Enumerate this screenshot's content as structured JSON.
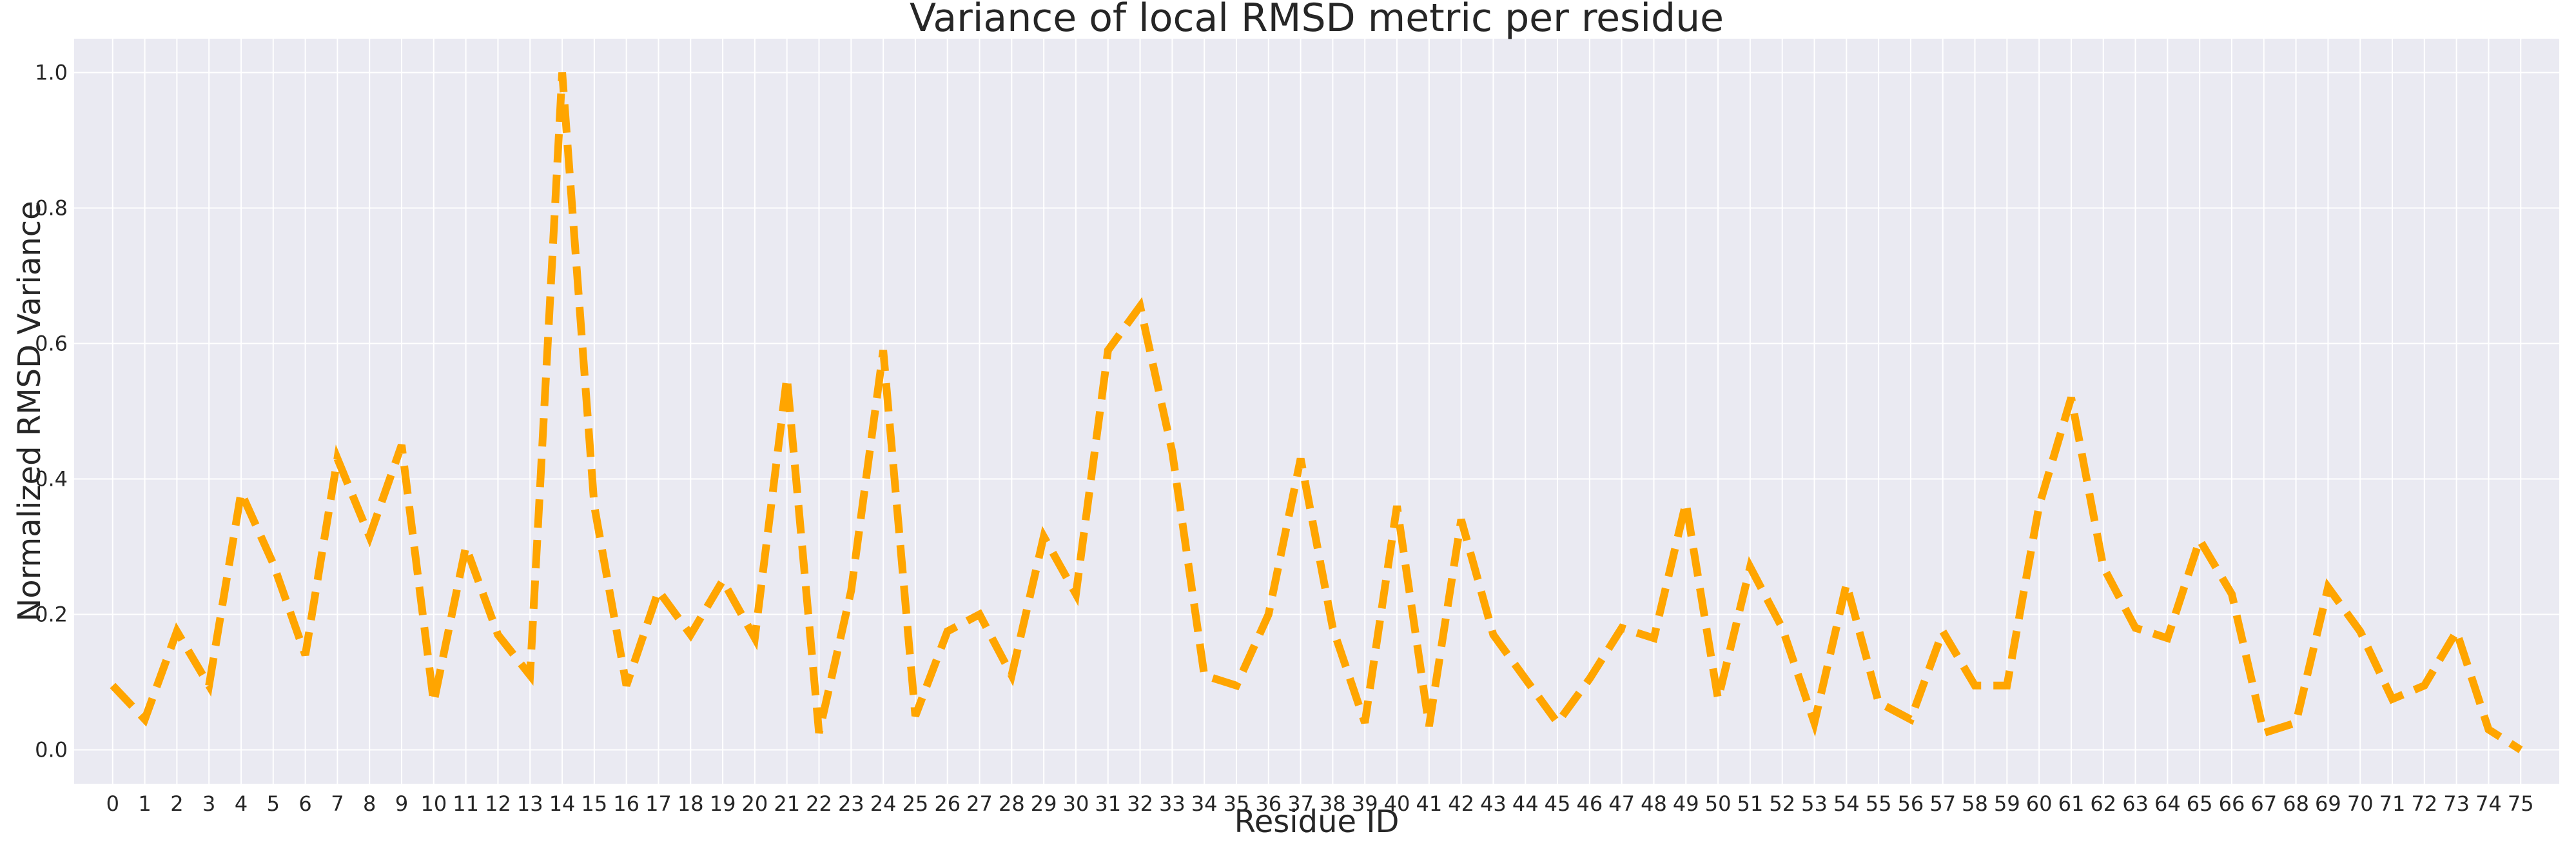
{
  "chart_data": {
    "type": "line",
    "title": "Variance of local RMSD metric per residue",
    "xlabel": "Residue ID",
    "ylabel": "Normalized RMSD Variance",
    "x": [
      0,
      1,
      2,
      3,
      4,
      5,
      6,
      7,
      8,
      9,
      10,
      11,
      12,
      13,
      14,
      15,
      16,
      17,
      18,
      19,
      20,
      21,
      22,
      23,
      24,
      25,
      26,
      27,
      28,
      29,
      30,
      31,
      32,
      33,
      34,
      35,
      36,
      37,
      38,
      39,
      40,
      41,
      42,
      43,
      44,
      45,
      46,
      47,
      48,
      49,
      50,
      51,
      52,
      53,
      54,
      55,
      56,
      57,
      58,
      59,
      60,
      61,
      62,
      63,
      64,
      65,
      66,
      67,
      68,
      69,
      70,
      71,
      72,
      73,
      74,
      75
    ],
    "xticks": [
      "0",
      "1",
      "2",
      "3",
      "4",
      "5",
      "6",
      "7",
      "8",
      "9",
      "10",
      "11",
      "12",
      "13",
      "14",
      "15",
      "16",
      "17",
      "18",
      "19",
      "20",
      "21",
      "22",
      "23",
      "24",
      "25",
      "26",
      "27",
      "28",
      "29",
      "30",
      "31",
      "32",
      "33",
      "34",
      "35",
      "36",
      "37",
      "38",
      "39",
      "40",
      "41",
      "42",
      "43",
      "44",
      "45",
      "46",
      "47",
      "48",
      "49",
      "50",
      "51",
      "52",
      "53",
      "54",
      "55",
      "56",
      "57",
      "58",
      "59",
      "60",
      "61",
      "62",
      "63",
      "64",
      "65",
      "66",
      "67",
      "68",
      "69",
      "70",
      "71",
      "72",
      "73",
      "74",
      "75"
    ],
    "yticks": [
      "0.0",
      "0.2",
      "0.4",
      "0.6",
      "0.8",
      "1.0"
    ],
    "ytick_values": [
      0.0,
      0.2,
      0.4,
      0.6,
      0.8,
      1.0
    ],
    "ylim": [
      -0.05,
      1.05
    ],
    "xlim": [
      -1.2,
      76.2
    ],
    "grid": true,
    "series": [
      {
        "color": "#ffa500",
        "linestyle": "dashed",
        "values": [
          0.095,
          0.045,
          0.175,
          0.095,
          0.38,
          0.275,
          0.14,
          0.43,
          0.315,
          0.45,
          0.07,
          0.3,
          0.17,
          0.11,
          1.0,
          0.36,
          0.095,
          0.235,
          0.17,
          0.25,
          0.165,
          0.55,
          0.025,
          0.235,
          0.59,
          0.05,
          0.175,
          0.2,
          0.11,
          0.315,
          0.23,
          0.59,
          0.655,
          0.44,
          0.11,
          0.095,
          0.2,
          0.43,
          0.18,
          0.04,
          0.36,
          0.035,
          0.34,
          0.17,
          0.105,
          0.04,
          0.105,
          0.18,
          0.165,
          0.365,
          0.075,
          0.27,
          0.18,
          0.04,
          0.245,
          0.07,
          0.045,
          0.175,
          0.095,
          0.095,
          0.36,
          0.52,
          0.27,
          0.18,
          0.165,
          0.31,
          0.23,
          0.025,
          0.04,
          0.24,
          0.175,
          0.075,
          0.095,
          0.175,
          0.03,
          0.0
        ]
      }
    ]
  }
}
